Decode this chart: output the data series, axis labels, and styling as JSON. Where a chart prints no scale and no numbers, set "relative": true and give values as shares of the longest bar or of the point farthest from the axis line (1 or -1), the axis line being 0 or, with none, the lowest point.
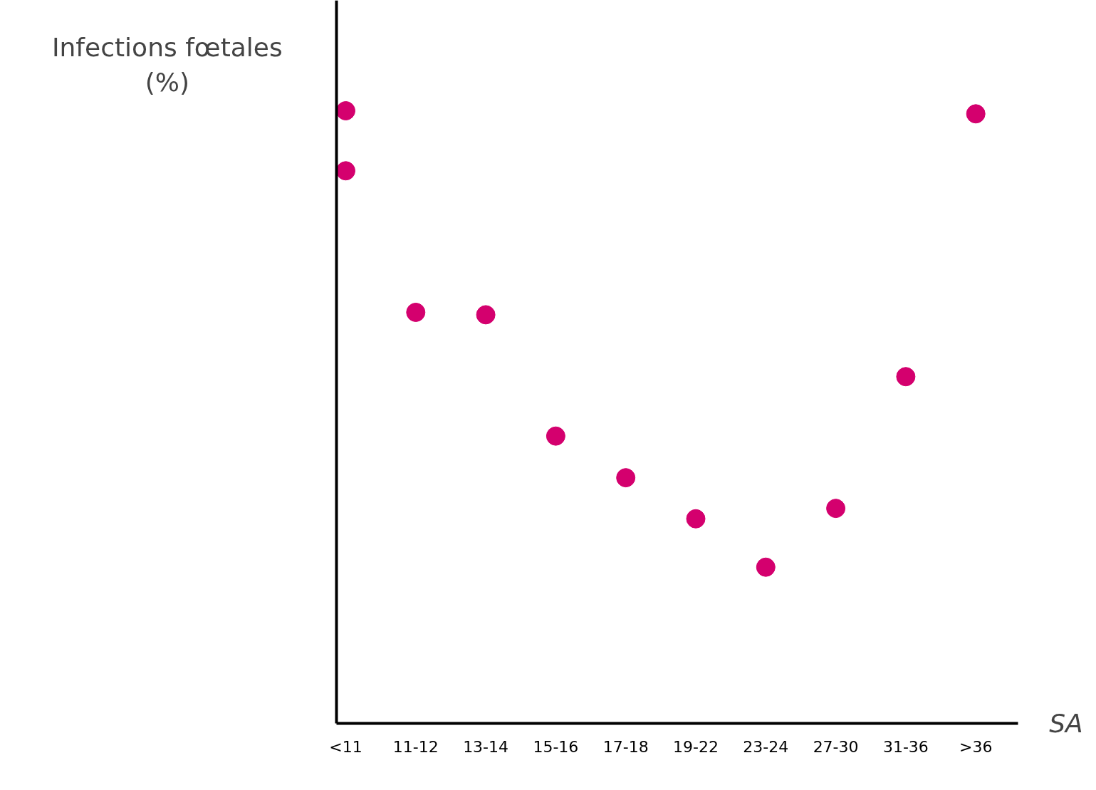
{
  "chart_data": {
    "type": "scatter",
    "ylabel": "Infections fœtales (%)",
    "xlabel": "SA",
    "relative": true,
    "marker": "circle",
    "grid": false,
    "categories": [
      "<11",
      "11-12",
      "13-14",
      "15-16",
      "17-18",
      "19-22",
      "23-24",
      "27-30",
      "31-36",
      ">36"
    ],
    "series": [
      {
        "color": "#d4006e",
        "values": [
          1,
          0.671,
          0.667,
          0.469,
          0.401,
          0.334,
          0.255,
          0.351,
          0.566,
          0.995
        ]
      },
      {
        "color": "#d4006e",
        "values": [
          0.902,
          null,
          null,
          null,
          null,
          null,
          null,
          null,
          null,
          null
        ]
      }
    ]
  }
}
